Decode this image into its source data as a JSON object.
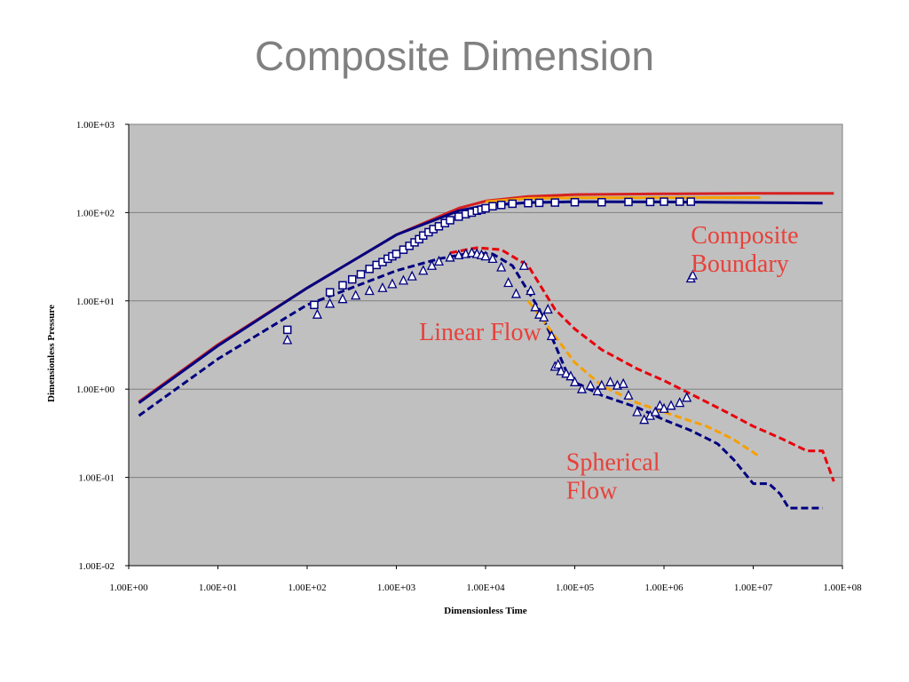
{
  "slide": {
    "title": "Composite Dimension"
  },
  "chart_data": {
    "type": "scatter",
    "xlabel": "Dimensionless Time",
    "ylabel": "Dimensionless Pressure",
    "xscale": "log",
    "yscale": "log",
    "xlim": [
      1,
      100000000
    ],
    "ylim": [
      0.01,
      1000
    ],
    "x_tick_labels": [
      "1.00E+00",
      "1.00E+01",
      "1.00E+02",
      "1.00E+03",
      "1.00E+04",
      "1.00E+05",
      "1.00E+06",
      "1.00E+07",
      "1.00E+08"
    ],
    "y_tick_labels": [
      "1.00E+03",
      "1.00E+02",
      "1.00E+01",
      "1.00E+00",
      "1.00E-01",
      "1.00E-02"
    ],
    "grid": "horizontal",
    "plot_background": "#c0c0c0",
    "annotations": [
      {
        "text": [
          "Composite",
          "Boundary"
        ],
        "color": "#e8413a",
        "x": 2000000,
        "y": 45
      },
      {
        "text": [
          "Linear Flow"
        ],
        "color": "#e8413a",
        "x": 1800,
        "y": 3.6
      },
      {
        "text": [
          "Spherical",
          "Flow"
        ],
        "color": "#e8413a",
        "x": 80000,
        "y": 0.12
      }
    ],
    "series": [
      {
        "style": "line-solid",
        "color": "#d62020",
        "x": [
          1.3,
          10,
          100,
          1000,
          5000,
          10000,
          30000,
          100000,
          1000000,
          10000000,
          80000000
        ],
        "y": [
          0.72,
          3.2,
          14,
          56,
          112,
          135,
          152,
          160,
          163,
          165,
          165
        ]
      },
      {
        "style": "line-solid",
        "color": "#f5a000",
        "x": [
          10000,
          30000,
          100000,
          1000000,
          12000000
        ],
        "y": [
          133,
          145,
          147,
          148,
          148
        ]
      },
      {
        "style": "line-solid",
        "color": "#000080",
        "x": [
          1.3,
          10,
          100,
          1000,
          5000,
          10000,
          30000,
          100000,
          1000000,
          10000000,
          60000000
        ],
        "y": [
          0.7,
          3.1,
          14,
          56,
          105,
          120,
          130,
          133,
          132,
          130,
          128
        ]
      },
      {
        "style": "line-dashed",
        "color": "#000080",
        "x": [
          1.3,
          10,
          100,
          1000,
          3000,
          7000,
          12000,
          20000,
          40000,
          60000,
          80000,
          100000,
          200000,
          500000,
          1000000,
          2000000,
          4000000,
          6000000,
          10000000,
          15000000,
          20000000,
          25000000,
          60000000
        ],
        "y": [
          0.5,
          2.2,
          9,
          22,
          30,
          35,
          34,
          25,
          8,
          3.2,
          1.6,
          1.2,
          0.85,
          0.62,
          0.45,
          0.34,
          0.24,
          0.16,
          0.085,
          0.085,
          0.065,
          0.045,
          0.045
        ]
      },
      {
        "style": "line-dashed",
        "color": "#e8000b",
        "x": [
          4000,
          8000,
          15000,
          30000,
          60000,
          100000,
          200000,
          500000,
          1000000,
          2000000,
          5000000,
          10000000,
          20000000,
          40000000,
          60000000,
          80000000
        ],
        "y": [
          35,
          40,
          38,
          25,
          8,
          4.8,
          2.8,
          1.7,
          1.25,
          0.88,
          0.55,
          0.38,
          0.28,
          0.2,
          0.2,
          0.09
        ]
      },
      {
        "style": "line-dashed",
        "color": "#f5a000",
        "x": [
          30000,
          60000,
          100000,
          200000,
          500000,
          1000000,
          3000000,
          6000000,
          12000000
        ],
        "y": [
          10,
          4,
          2,
          1.1,
          0.7,
          0.55,
          0.38,
          0.27,
          0.17
        ]
      },
      {
        "style": "marker-square",
        "color": "#000080",
        "x": [
          60,
          120,
          180,
          250,
          320,
          400,
          500,
          600,
          700,
          800,
          900,
          1000,
          1200,
          1400,
          1600,
          1800,
          2000,
          2300,
          2600,
          3000,
          3500,
          4000,
          5000,
          6000,
          7000,
          8000,
          9000,
          10000,
          12000,
          15000,
          20000,
          30000,
          40000,
          60000,
          100000,
          200000,
          400000,
          700000,
          1000000,
          1500000,
          2000000
        ],
        "y": [
          4.7,
          9,
          12.5,
          15,
          17.5,
          20,
          23,
          25.5,
          27.5,
          30,
          32,
          34,
          38,
          42,
          46,
          50,
          55,
          60,
          65,
          70,
          76,
          82,
          90,
          96,
          100,
          105,
          108,
          112,
          118,
          122,
          126,
          128,
          129,
          130,
          131,
          131,
          132,
          132,
          133,
          133,
          133
        ]
      },
      {
        "style": "marker-triangle",
        "color": "#000080",
        "x": [
          60,
          130,
          180,
          250,
          350,
          500,
          700,
          900,
          1200,
          1500,
          2000,
          2500,
          3000,
          4000,
          5000,
          6000,
          7000,
          8000,
          9000,
          10000,
          12000,
          15000,
          18000,
          22000,
          27000,
          32000,
          36000,
          40000,
          45000,
          50000,
          55000,
          60000,
          65000,
          70000,
          80000,
          90000,
          100000,
          120000,
          150000,
          180000,
          200000,
          250000,
          300000,
          350000,
          400000,
          500000,
          600000,
          700000,
          800000,
          900000,
          1000000,
          1200000,
          1500000,
          1800000,
          2000000,
          2100000
        ],
        "y": [
          3.6,
          7,
          9.3,
          10.5,
          11.5,
          13,
          14,
          15.5,
          17,
          19,
          22,
          25,
          28,
          31,
          33,
          34,
          35,
          34,
          33,
          32,
          30,
          24,
          16,
          12,
          25,
          13,
          8.5,
          7,
          6.5,
          8,
          4,
          1.8,
          1.9,
          1.6,
          1.5,
          1.4,
          1.2,
          1.0,
          1.1,
          0.95,
          1.1,
          1.2,
          1.1,
          1.15,
          0.85,
          0.55,
          0.45,
          0.5,
          0.55,
          0.65,
          0.6,
          0.65,
          0.7,
          0.8,
          18,
          19.5
        ]
      }
    ]
  }
}
